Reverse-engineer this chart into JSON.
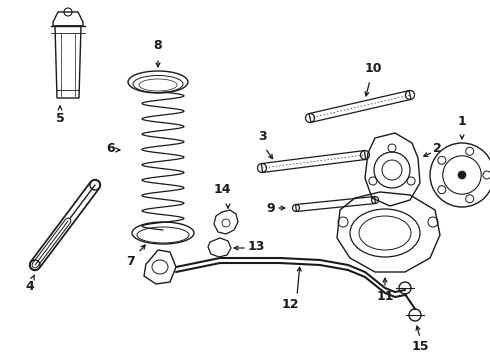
{
  "background_color": "#ffffff",
  "line_color": "#1a1a1a",
  "label_color": "#000000",
  "font_size": 9,
  "figsize": [
    4.9,
    3.6
  ],
  "dpi": 100
}
